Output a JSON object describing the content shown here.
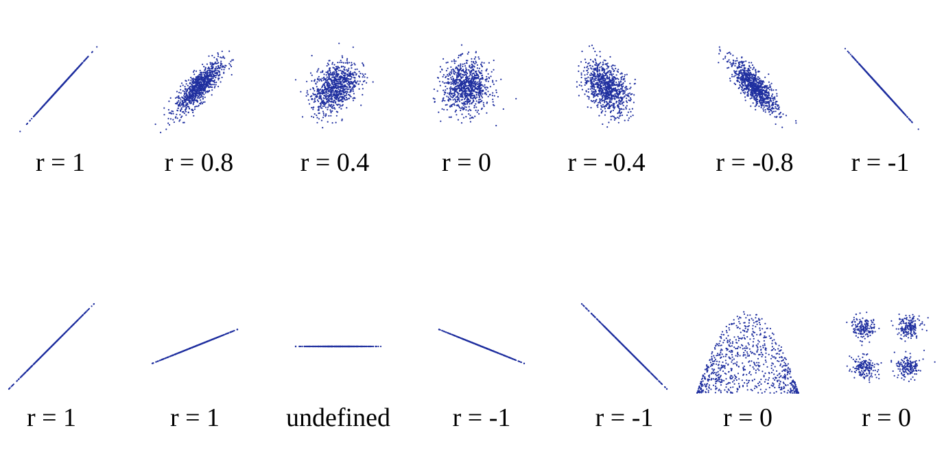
{
  "chart_data": {
    "type": "scatter",
    "point_color": "#1f2f9f",
    "rows": [
      {
        "panels": [
          {
            "label": "r = 1",
            "kind": "gauss",
            "r": 1
          },
          {
            "label": "r = 0.8",
            "kind": "gauss",
            "r": 0.8
          },
          {
            "label": "r = 0.4",
            "kind": "gauss",
            "r": 0.4
          },
          {
            "label": "r = 0",
            "kind": "gauss",
            "r": 0
          },
          {
            "label": "r = -0.4",
            "kind": "gauss",
            "r": -0.4
          },
          {
            "label": "r = -0.8",
            "kind": "gauss",
            "r": -0.8
          },
          {
            "label": "r = -1",
            "kind": "gauss",
            "r": -1
          }
        ]
      },
      {
        "panels": [
          {
            "label": "r = 1",
            "kind": "line",
            "slope": 1
          },
          {
            "label": "r = 1",
            "kind": "line",
            "slope": 0.4
          },
          {
            "label": "undefined",
            "kind": "line",
            "slope": 0
          },
          {
            "label": "r = -1",
            "kind": "line",
            "slope": -0.4
          },
          {
            "label": "r = -1",
            "kind": "line",
            "slope": -1
          },
          {
            "label": "r = 0",
            "kind": "parabola"
          },
          {
            "label": "r = 0",
            "kind": "clusters"
          }
        ]
      }
    ]
  }
}
